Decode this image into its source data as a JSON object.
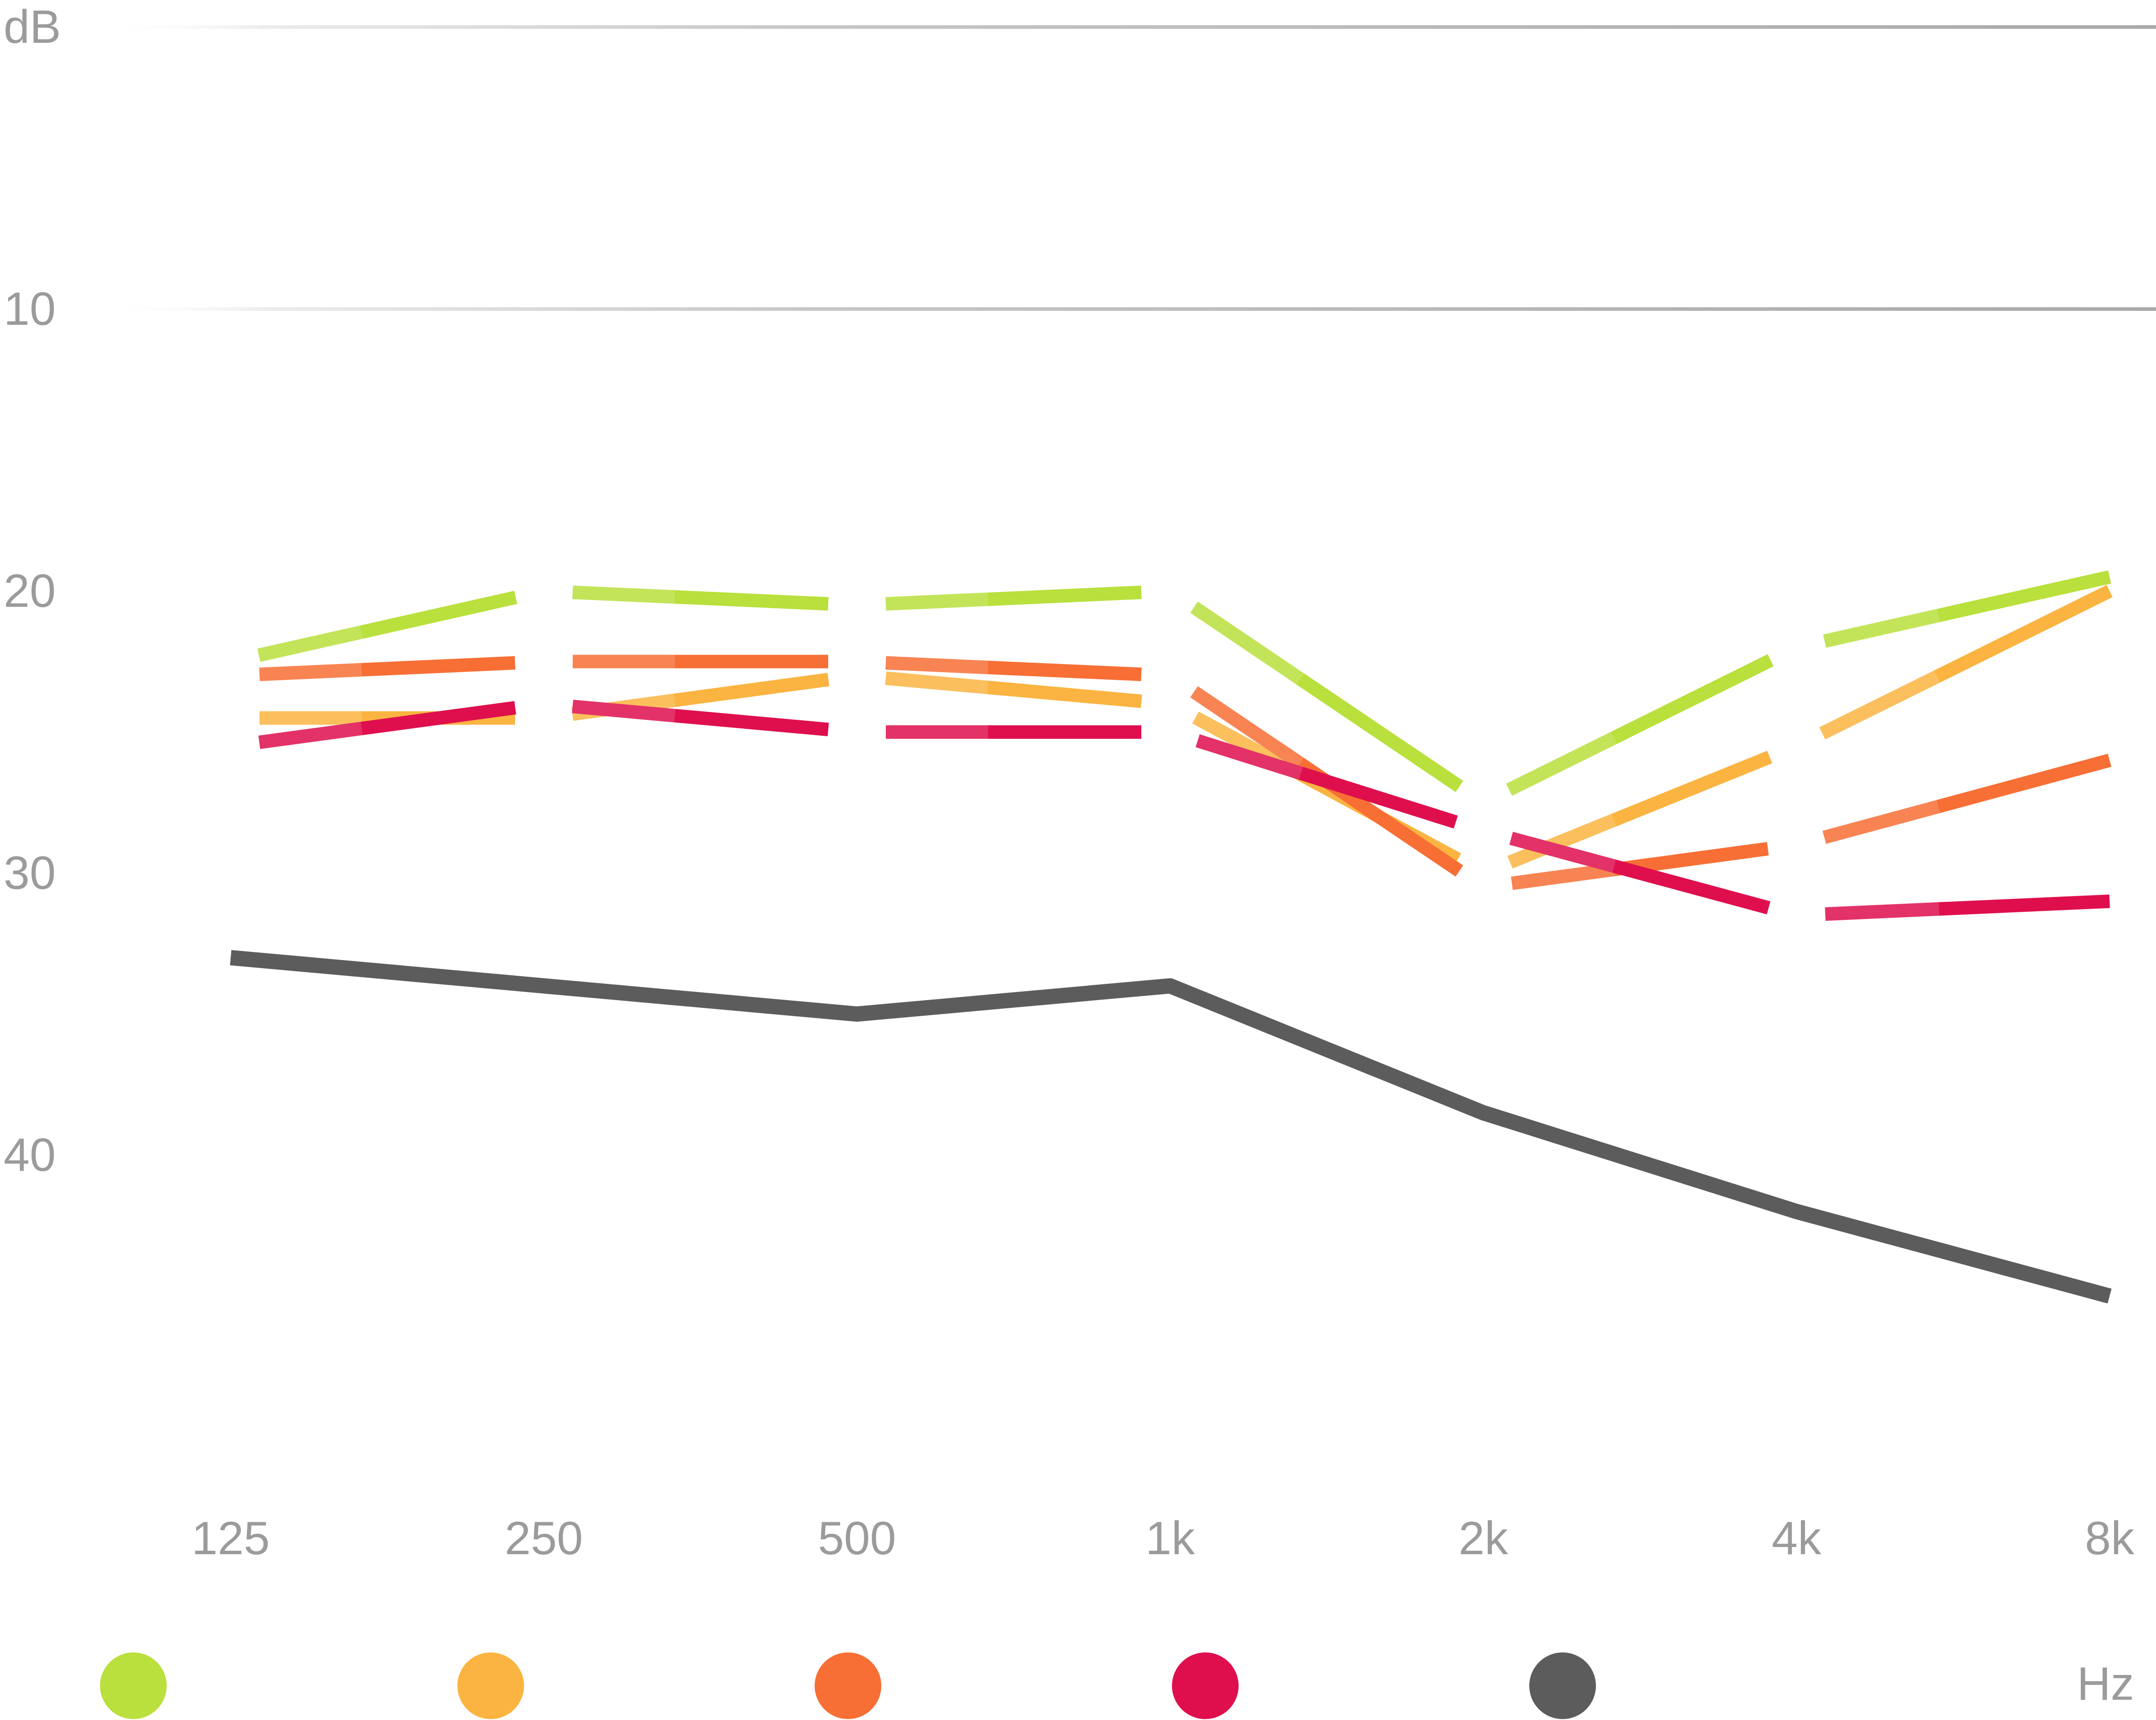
{
  "chart_data": {
    "type": "line",
    "title": "",
    "x_categories": [
      "125",
      "250",
      "500",
      "1k",
      "2k",
      "4k",
      "8k"
    ],
    "x_axis_unit": "Hz",
    "y_axis_unit": "dB",
    "y_ticks": [
      "10",
      "20",
      "30",
      "40"
    ],
    "y_axis_direction": "inverted (smaller dB = better, drawn at top)",
    "ylim": [
      0,
      47
    ],
    "gridlines_at_db": [
      0,
      10
    ],
    "grid": "horizontal-only, top two lines, left-faded gradient",
    "legend_position": "bottom, color dots only (no text labels)",
    "series": [
      {
        "name": "test-result-lime",
        "color": "#b9e03c",
        "line_style": "broken-at-points",
        "values": [
          22.5,
          20,
          20.5,
          20,
          27.5,
          22,
          19.5
        ]
      },
      {
        "name": "test-result-amber",
        "color": "#fbb441",
        "line_style": "broken-at-points",
        "values": [
          24.5,
          24.5,
          23,
          24,
          30,
          25.5,
          20
        ]
      },
      {
        "name": "test-result-orange",
        "color": "#f76f35",
        "line_style": "broken-at-points",
        "values": [
          23,
          22.5,
          22.5,
          23,
          30.5,
          29,
          26
        ]
      },
      {
        "name": "test-result-red",
        "color": "#df0f4d",
        "line_style": "broken-at-points",
        "values": [
          25.5,
          24,
          25,
          25,
          28.5,
          31.5,
          31
        ]
      },
      {
        "name": "test-result-gray",
        "color": "#5c5c5c",
        "line_style": "continuous",
        "values": [
          33,
          34,
          35,
          34,
          38.5,
          42,
          45
        ]
      }
    ],
    "legend_dots": [
      {
        "name": "legend-dot-lime",
        "color": "#b9e03c"
      },
      {
        "name": "legend-dot-amber",
        "color": "#fbb441"
      },
      {
        "name": "legend-dot-orange",
        "color": "#f76f35"
      },
      {
        "name": "legend-dot-red",
        "color": "#df0f4d"
      },
      {
        "name": "legend-dot-gray",
        "color": "#5c5c5c"
      }
    ]
  },
  "colors": {
    "background": "#ffffff",
    "axis_label_gray": "#9b9b9b",
    "gridline_gray": "#b5b5b5"
  }
}
